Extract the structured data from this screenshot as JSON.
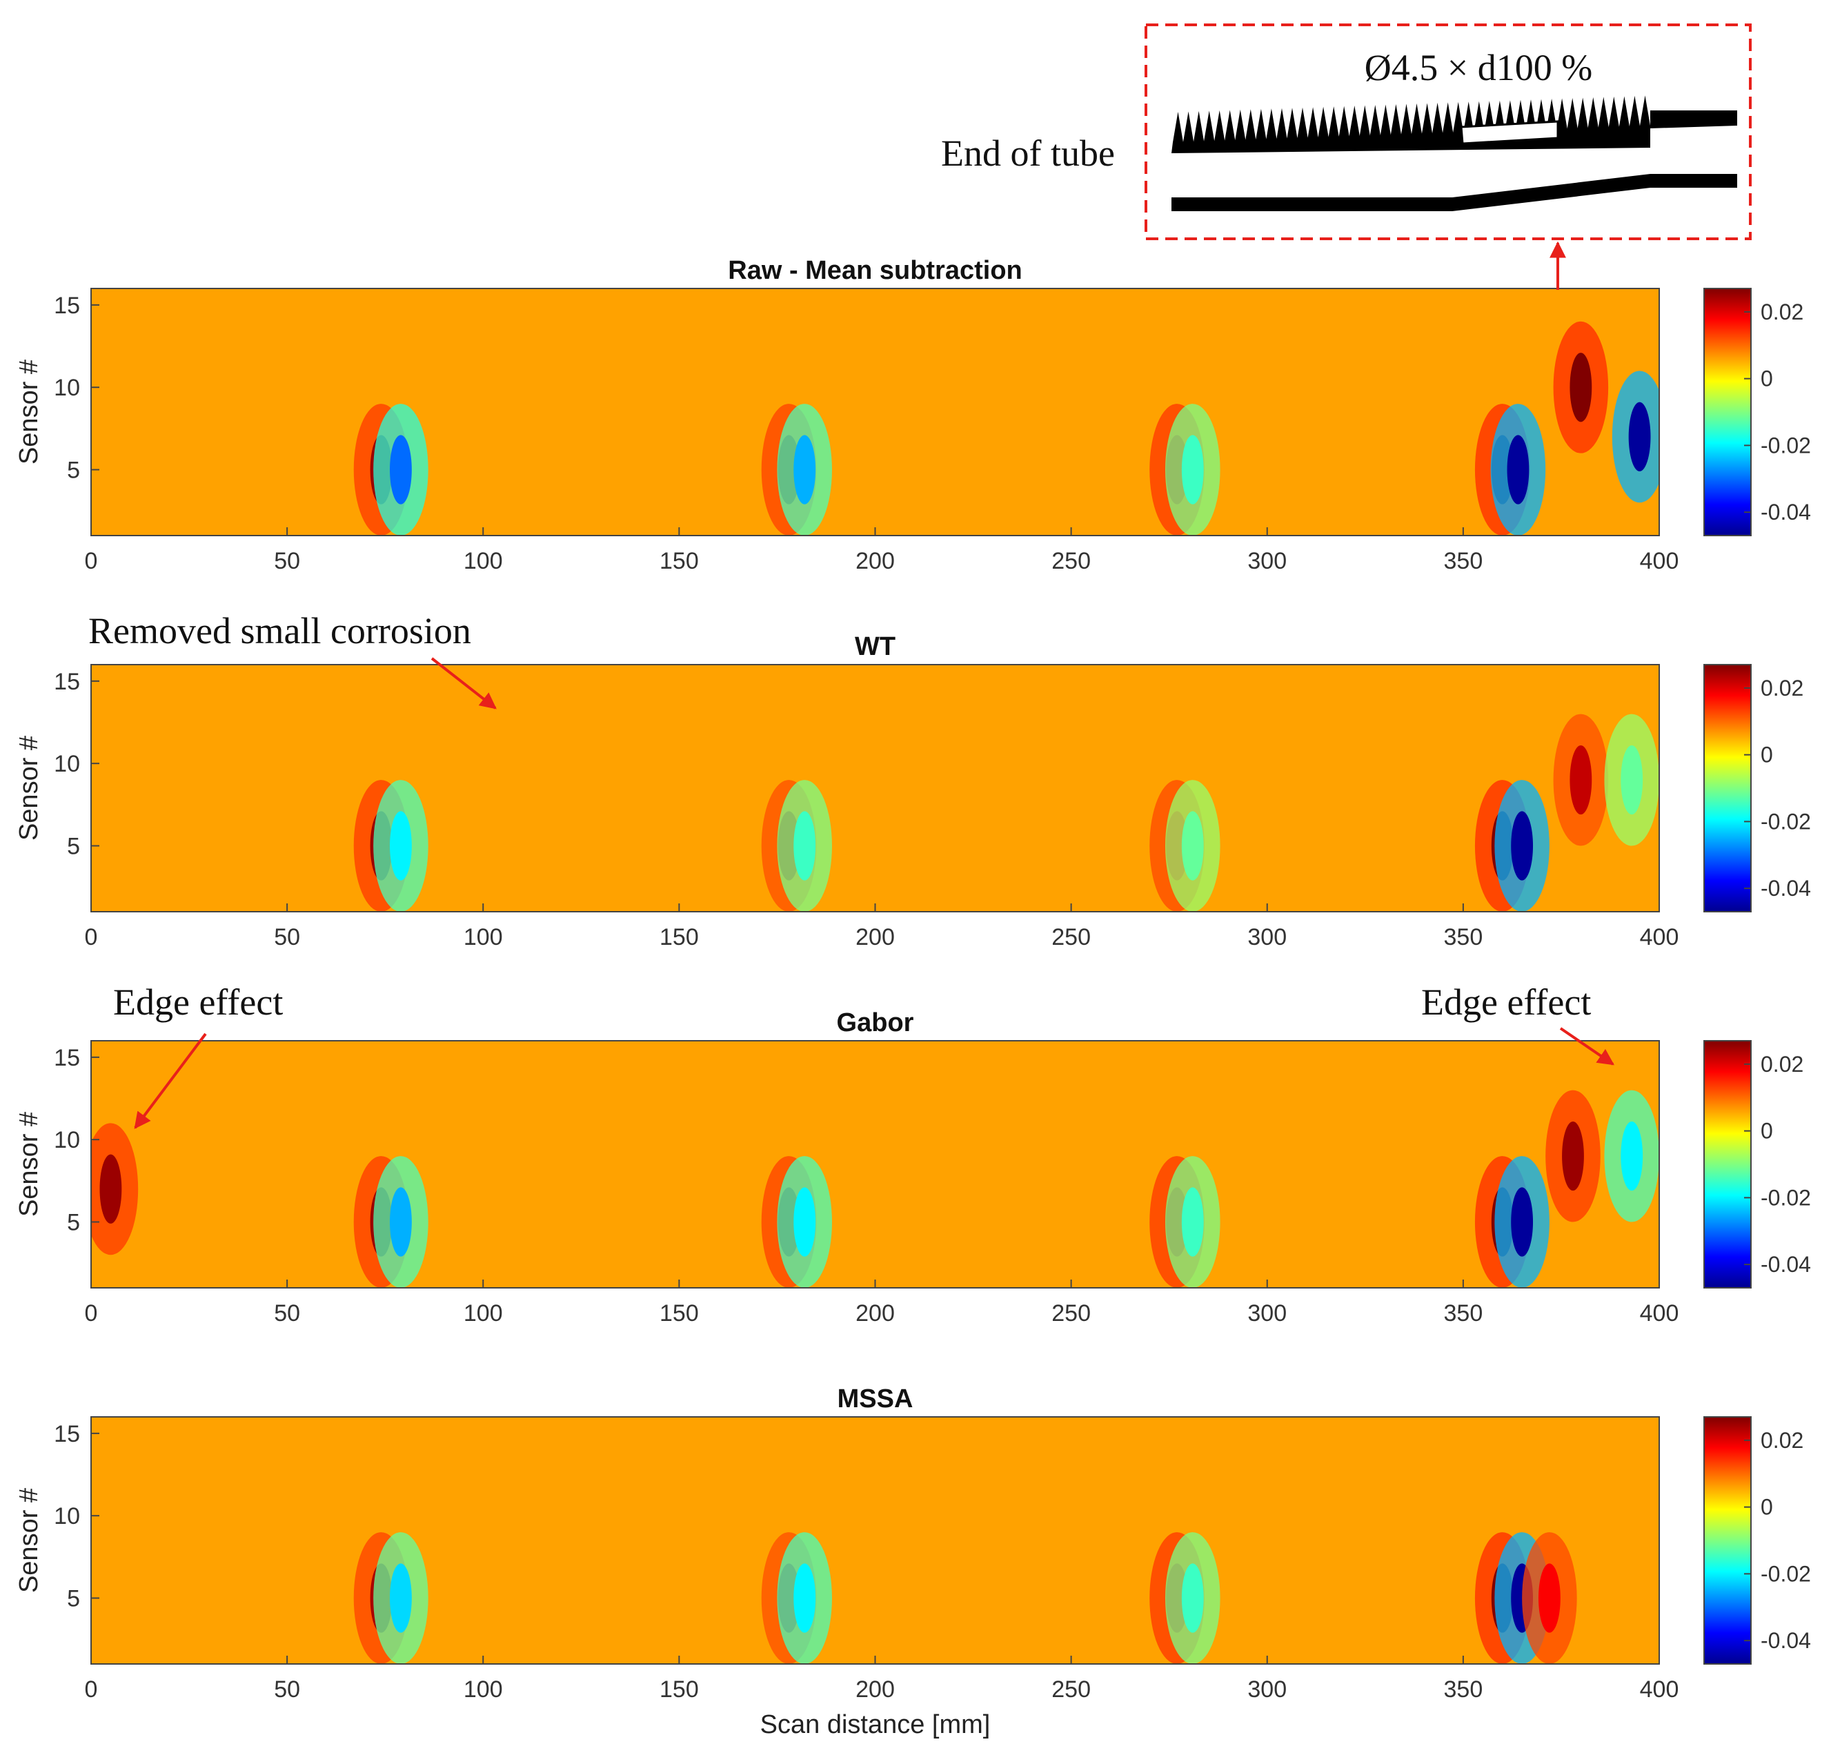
{
  "chart_data": [
    {
      "type": "heatmap",
      "title": "Raw - Mean subtraction",
      "xlabel": "",
      "ylabel": "Sensor #",
      "xlim": [
        0,
        400
      ],
      "ylim": [
        1,
        16
      ],
      "xticks": [
        0,
        50,
        100,
        150,
        200,
        250,
        300,
        350,
        400
      ],
      "yticks": [
        5,
        10,
        15
      ],
      "colorbar": {
        "min": -0.047,
        "max": 0.027,
        "ticks": [
          0.02,
          0,
          -0.02,
          -0.04
        ],
        "tick_labels": [
          "0.02",
          "0",
          "-0.02",
          "-0.04"
        ],
        "colormap": "jet"
      },
      "features": [
        {
          "x": 74,
          "y": 5,
          "value": 0.025
        },
        {
          "x": 79,
          "y": 5,
          "value": -0.03
        },
        {
          "x": 178,
          "y": 5,
          "value": 0.024
        },
        {
          "x": 182,
          "y": 5,
          "value": -0.025
        },
        {
          "x": 277,
          "y": 5,
          "value": 0.02
        },
        {
          "x": 281,
          "y": 5,
          "value": -0.015
        },
        {
          "x": 360,
          "y": 5,
          "value": 0.027
        },
        {
          "x": 364,
          "y": 5,
          "value": -0.045
        },
        {
          "x": 380,
          "y": 10,
          "value": 0.027
        },
        {
          "x": 395,
          "y": 7,
          "value": -0.045
        }
      ]
    },
    {
      "type": "heatmap",
      "title": "WT",
      "xlabel": "",
      "ylabel": "Sensor #",
      "xlim": [
        0,
        400
      ],
      "ylim": [
        1,
        16
      ],
      "xticks": [
        0,
        50,
        100,
        150,
        200,
        250,
        300,
        350,
        400
      ],
      "yticks": [
        5,
        10,
        15
      ],
      "colorbar": {
        "min": -0.047,
        "max": 0.027,
        "ticks": [
          0.02,
          0,
          -0.02,
          -0.04
        ],
        "tick_labels": [
          "0.02",
          "0",
          "-0.02",
          "-0.04"
        ],
        "colormap": "jet"
      },
      "features": [
        {
          "x": 74,
          "y": 5,
          "value": 0.025
        },
        {
          "x": 79,
          "y": 5,
          "value": -0.02
        },
        {
          "x": 178,
          "y": 5,
          "value": 0.022
        },
        {
          "x": 182,
          "y": 5,
          "value": -0.015
        },
        {
          "x": 277,
          "y": 5,
          "value": 0.018
        },
        {
          "x": 281,
          "y": 5,
          "value": -0.012
        },
        {
          "x": 360,
          "y": 5,
          "value": 0.027
        },
        {
          "x": 365,
          "y": 5,
          "value": -0.045
        },
        {
          "x": 380,
          "y": 9,
          "value": 0.022
        },
        {
          "x": 393,
          "y": 9,
          "value": -0.012
        }
      ]
    },
    {
      "type": "heatmap",
      "title": "Gabor",
      "xlabel": "",
      "ylabel": "Sensor #",
      "xlim": [
        0,
        400
      ],
      "ylim": [
        1,
        16
      ],
      "xticks": [
        0,
        50,
        100,
        150,
        200,
        250,
        300,
        350,
        400
      ],
      "yticks": [
        5,
        10,
        15
      ],
      "colorbar": {
        "min": -0.047,
        "max": 0.027,
        "ticks": [
          0.02,
          0,
          -0.02,
          -0.04
        ],
        "tick_labels": [
          "0.02",
          "0",
          "-0.02",
          "-0.04"
        ],
        "colormap": "jet"
      },
      "features": [
        {
          "x": 5,
          "y": 7,
          "value": 0.025
        },
        {
          "x": 74,
          "y": 5,
          "value": 0.025
        },
        {
          "x": 79,
          "y": 5,
          "value": -0.025
        },
        {
          "x": 178,
          "y": 5,
          "value": 0.024
        },
        {
          "x": 182,
          "y": 5,
          "value": -0.02
        },
        {
          "x": 277,
          "y": 5,
          "value": 0.02
        },
        {
          "x": 281,
          "y": 5,
          "value": -0.015
        },
        {
          "x": 360,
          "y": 5,
          "value": 0.027
        },
        {
          "x": 365,
          "y": 5,
          "value": -0.045
        },
        {
          "x": 378,
          "y": 9,
          "value": 0.025
        },
        {
          "x": 393,
          "y": 9,
          "value": -0.02
        }
      ]
    },
    {
      "type": "heatmap",
      "title": "MSSA",
      "xlabel": "Scan distance [mm]",
      "ylabel": "Sensor #",
      "xlim": [
        0,
        400
      ],
      "ylim": [
        1,
        16
      ],
      "xticks": [
        0,
        50,
        100,
        150,
        200,
        250,
        300,
        350,
        400
      ],
      "yticks": [
        5,
        10,
        15
      ],
      "colorbar": {
        "min": -0.047,
        "max": 0.027,
        "ticks": [
          0.02,
          0,
          -0.02,
          -0.04
        ],
        "tick_labels": [
          "0.02",
          "0",
          "-0.02",
          "-0.04"
        ],
        "colormap": "jet"
      },
      "features": [
        {
          "x": 74,
          "y": 5,
          "value": 0.024
        },
        {
          "x": 79,
          "y": 5,
          "value": -0.022
        },
        {
          "x": 178,
          "y": 5,
          "value": 0.022
        },
        {
          "x": 182,
          "y": 5,
          "value": -0.02
        },
        {
          "x": 277,
          "y": 5,
          "value": 0.02
        },
        {
          "x": 281,
          "y": 5,
          "value": -0.015
        },
        {
          "x": 360,
          "y": 5,
          "value": 0.027
        },
        {
          "x": 365,
          "y": 5,
          "value": -0.045
        },
        {
          "x": 372,
          "y": 5,
          "value": 0.018
        }
      ]
    }
  ],
  "annotations": {
    "inset_label": "Ø4.5 × d100 %",
    "end_of_tube": "End of tube",
    "removed_small_corrosion": "Removed small corrosion",
    "edge_effect_left": "Edge effect",
    "edge_effect_right": "Edge effect"
  },
  "colors": {
    "annotation_arrow": "#e8201b",
    "inset_border": "#e8201b"
  }
}
